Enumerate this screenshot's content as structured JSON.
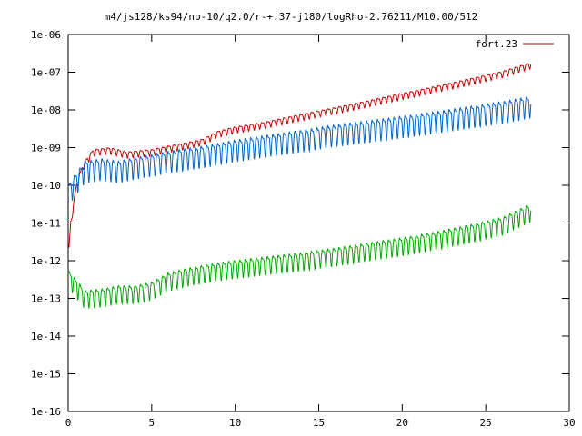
{
  "chart_data": {
    "type": "line",
    "title": "m4/js128/ks94/np-10/q2.0/r-+.37-j180/logRho-2.76211/M10.00/512",
    "xlabel": "",
    "ylabel": "",
    "xlim": [
      0,
      30
    ],
    "ylim": [
      1e-16,
      1e-06
    ],
    "yscale": "log",
    "grid": false,
    "legend_position": "top-right",
    "x_ticks": [
      0,
      5,
      10,
      15,
      20,
      25,
      30
    ],
    "x_tick_labels": [
      "0",
      "5",
      "10",
      "15",
      "20",
      "25",
      "30"
    ],
    "y_ticks": [
      1e-16,
      1e-15,
      1e-14,
      1e-13,
      1e-12,
      1e-11,
      1e-10,
      1e-09,
      1e-08,
      1e-07,
      1e-06
    ],
    "y_tick_labels": [
      "1e-16",
      "1e-15",
      "1e-14",
      "1e-13",
      "1e-12",
      "1e-11",
      "1e-10",
      "1e-09",
      "1e-08",
      "1e-07",
      "1e-06"
    ],
    "series": [
      {
        "name": "fort.23",
        "color": "#cc0000",
        "trend": [
          [
            0.05,
            2e-12
          ],
          [
            0.15,
            1e-11
          ],
          [
            0.5,
            1e-10
          ],
          [
            0.9,
            3.5e-10
          ],
          [
            1.5,
            8e-10
          ],
          [
            2.5,
            9e-10
          ],
          [
            3.5,
            7e-10
          ],
          [
            5,
            8e-10
          ],
          [
            6,
            1e-09
          ],
          [
            7,
            1.2e-09
          ],
          [
            8,
            1.5e-09
          ],
          [
            9,
            2.5e-09
          ],
          [
            10,
            3.2e-09
          ],
          [
            12,
            4.5e-09
          ],
          [
            14,
            7e-09
          ],
          [
            16,
            1.05e-08
          ],
          [
            18,
            1.6e-08
          ],
          [
            20,
            2.5e-08
          ],
          [
            22,
            3.8e-08
          ],
          [
            24,
            6e-08
          ],
          [
            26,
            9.5e-08
          ],
          [
            27.7,
            1.65e-07
          ]
        ],
        "oscillation_decades": 0.09,
        "period": 0.33
      },
      {
        "name": "",
        "color": "#0066cc",
        "trend": [
          [
            0.05,
            8e-11
          ],
          [
            0.5,
            1.5e-10
          ],
          [
            1,
            3e-10
          ],
          [
            2,
            3.5e-10
          ],
          [
            3,
            3e-10
          ],
          [
            4,
            3.8e-10
          ],
          [
            5,
            4.5e-10
          ],
          [
            6,
            5.5e-10
          ],
          [
            7,
            6.5e-10
          ],
          [
            8,
            7.5e-10
          ],
          [
            9,
            9e-10
          ],
          [
            10,
            1.1e-09
          ],
          [
            12,
            1.5e-09
          ],
          [
            14,
            2e-09
          ],
          [
            16,
            2.8e-09
          ],
          [
            18,
            3.6e-09
          ],
          [
            20,
            4.7e-09
          ],
          [
            22,
            6.2e-09
          ],
          [
            24,
            8.5e-09
          ],
          [
            26,
            1.15e-08
          ],
          [
            27.7,
            1.6e-08
          ]
        ],
        "oscillation_decades": 0.3,
        "period": 0.33
      },
      {
        "name": "",
        "color": "#00aa00",
        "trend": [
          [
            0.05,
            4e-13
          ],
          [
            1,
            1.2e-13
          ],
          [
            2,
            1.3e-13
          ],
          [
            3,
            1.6e-13
          ],
          [
            4,
            1.6e-13
          ],
          [
            5,
            2e-13
          ],
          [
            6,
            3.5e-13
          ],
          [
            7,
            4.5e-13
          ],
          [
            8,
            5.5e-13
          ],
          [
            9,
            6.5e-13
          ],
          [
            10,
            7.5e-13
          ],
          [
            12,
            9.5e-13
          ],
          [
            14,
            1.2e-12
          ],
          [
            16,
            1.6e-12
          ],
          [
            18,
            2.2e-12
          ],
          [
            20,
            3e-12
          ],
          [
            22,
            4.3e-12
          ],
          [
            24,
            6.5e-12
          ],
          [
            26,
            1.05e-11
          ],
          [
            27.7,
            2.4e-11
          ]
        ],
        "oscillation_decades": 0.25,
        "period": 0.33
      }
    ]
  }
}
